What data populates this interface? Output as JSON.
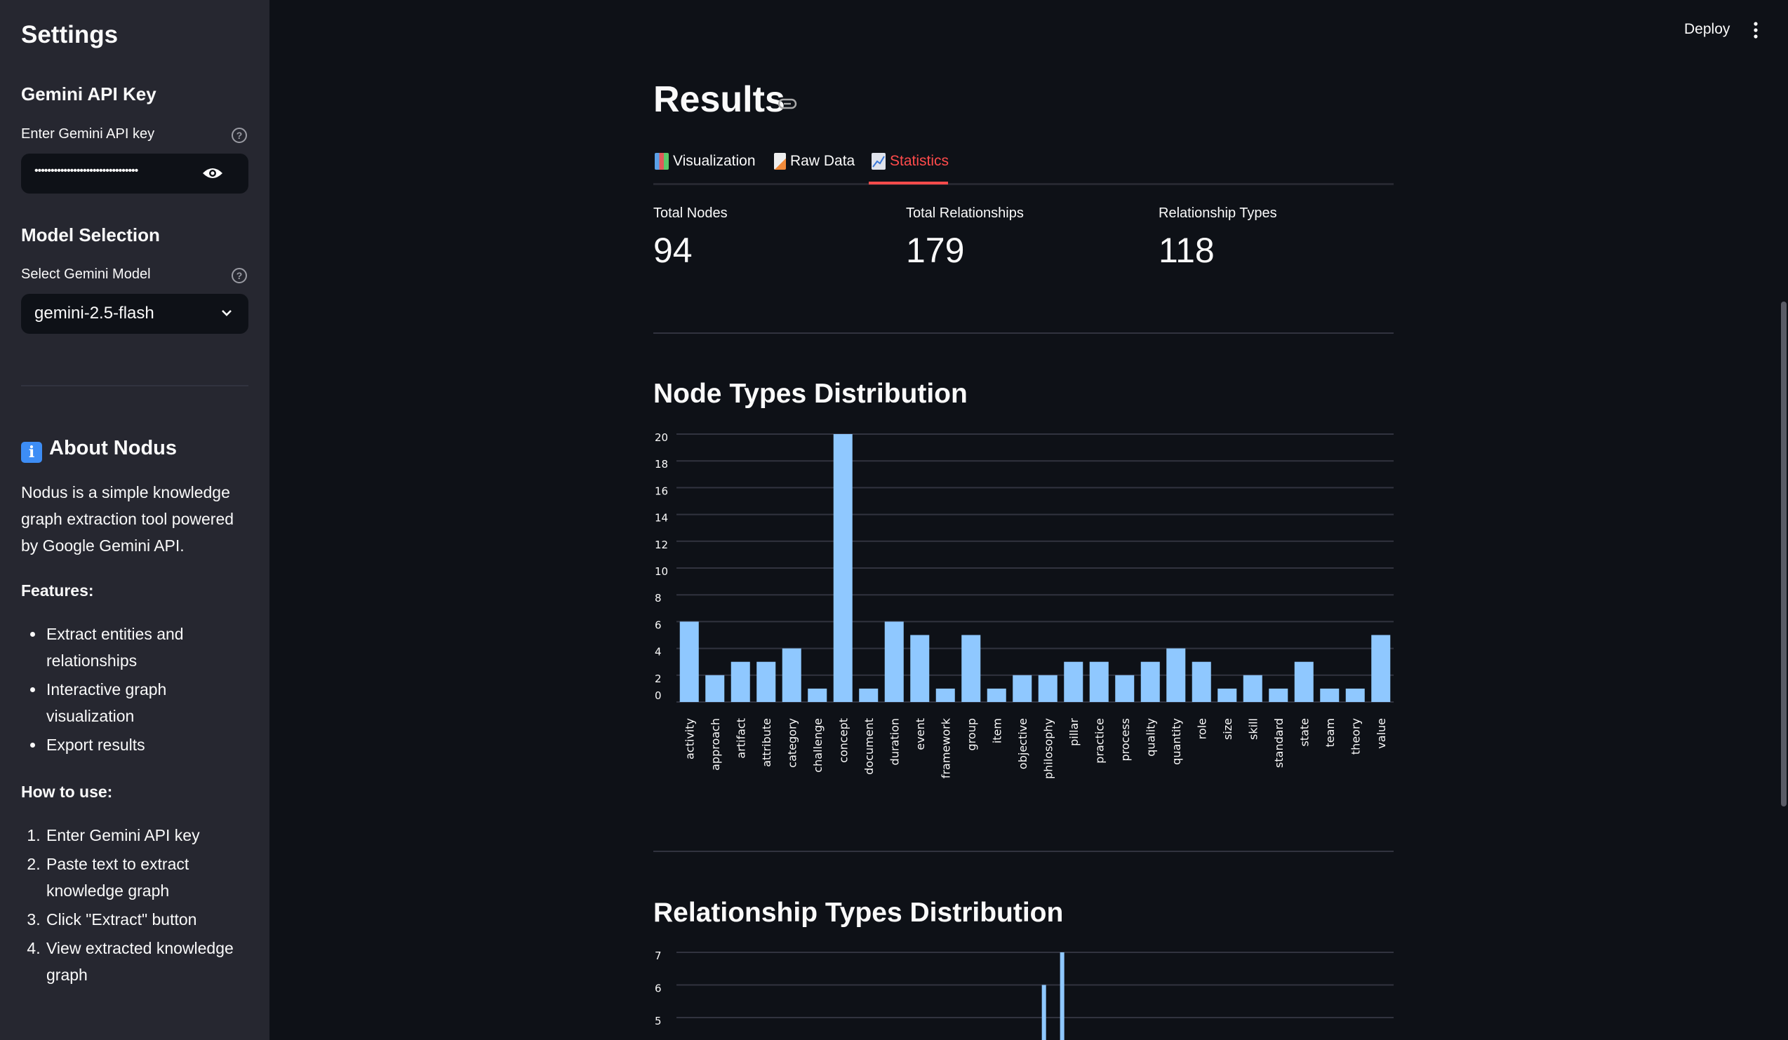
{
  "sidebar": {
    "title": "Settings",
    "api_section": {
      "heading": "Gemini API Key",
      "label": "Enter Gemini API key",
      "value": "••••••••••••••••••••••••••••••••",
      "help": "?"
    },
    "model_section": {
      "heading": "Model Selection",
      "label": "Select Gemini Model",
      "value": "gemini-2.5-flash",
      "help": "?"
    },
    "about": {
      "heading": "About Nodus",
      "icon": "i",
      "description": "Nodus is a simple knowledge graph extraction tool powered by Google Gemini API.",
      "features_heading": "Features:",
      "features": [
        "Extract entities and relationships",
        "Interactive graph visualization",
        "Export results"
      ],
      "howto_heading": "How to use:",
      "steps": [
        "Enter Gemini API key",
        "Paste text to extract knowledge graph",
        "Click \"Extract\" button",
        "View extracted knowledge graph"
      ]
    }
  },
  "header": {
    "deploy": "Deploy"
  },
  "main": {
    "title": "Results",
    "tabs": [
      {
        "label": "Visualization",
        "icon": "bar-chart-icon"
      },
      {
        "label": "Raw Data",
        "icon": "document-icon"
      },
      {
        "label": "Statistics",
        "icon": "trend-chart-icon",
        "active": true
      }
    ],
    "metrics": [
      {
        "label": "Total Nodes",
        "value": "94"
      },
      {
        "label": "Total Relationships",
        "value": "179"
      },
      {
        "label": "Relationship Types",
        "value": "118"
      }
    ],
    "node_chart_title": "Node Types Distribution",
    "rel_chart_title": "Relationship Types Distribution"
  },
  "chart_data": [
    {
      "type": "bar",
      "title": "Node Types Distribution",
      "color": "#8fc8ff",
      "categories": [
        "activity",
        "approach",
        "artifact",
        "attribute",
        "category",
        "challenge",
        "concept",
        "document",
        "duration",
        "event",
        "framework",
        "group",
        "item",
        "objective",
        "philosophy",
        "pillar",
        "practice",
        "process",
        "quality",
        "quantity",
        "role",
        "size",
        "skill",
        "standard",
        "state",
        "team",
        "theory",
        "value"
      ],
      "values": [
        6,
        2,
        3,
        3,
        4,
        1,
        20,
        1,
        6,
        5,
        1,
        5,
        1,
        2,
        2,
        3,
        3,
        2,
        3,
        4,
        3,
        1,
        2,
        1,
        3,
        1,
        1,
        5
      ],
      "yticks": [
        0,
        2,
        4,
        6,
        8,
        10,
        12,
        14,
        16,
        18,
        20
      ],
      "ylim": [
        0,
        20
      ],
      "grid": true
    },
    {
      "type": "bar",
      "title": "Relationship Types Distribution",
      "color": "#8fc8ff",
      "num_categories": 118,
      "visible_bars": [
        {
          "index": 60,
          "value": 6
        },
        {
          "index": 63,
          "value": 7
        }
      ],
      "yticks": [
        5,
        6,
        7
      ],
      "grid": true
    }
  ]
}
